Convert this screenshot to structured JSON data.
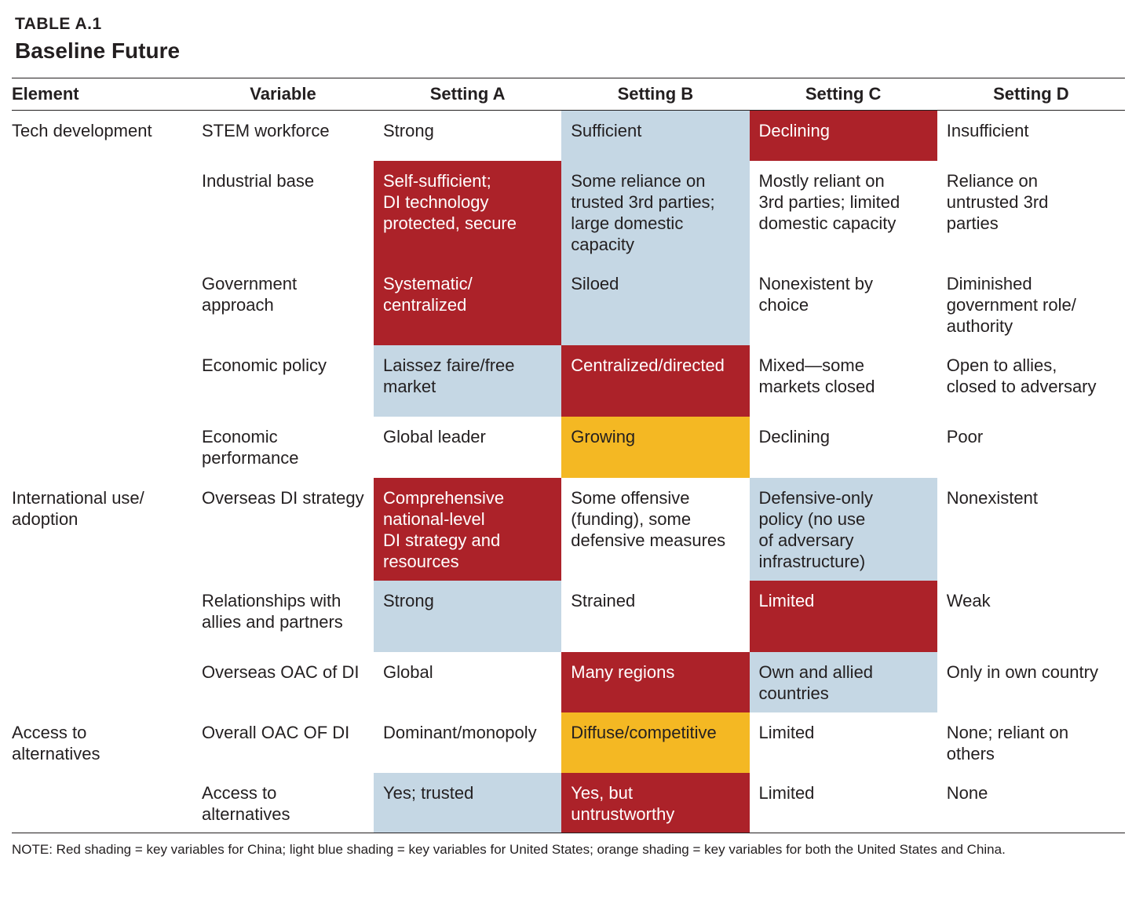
{
  "table_label": "TABLE A.1",
  "table_title": "Baseline Future",
  "columns": [
    "Element",
    "Variable",
    "Setting A",
    "Setting B",
    "Setting C",
    "Setting D"
  ],
  "colors": {
    "red": "#ac2229",
    "blue": "#c5d7e4",
    "orange": "#f4b823"
  },
  "rows": [
    {
      "element": "Tech development",
      "variable": "STEM workforce",
      "h": 64,
      "cells": [
        {
          "text": "Strong",
          "shade": ""
        },
        {
          "text": "Sufficient",
          "shade": "blue"
        },
        {
          "text": "Declining",
          "shade": "red"
        },
        {
          "text": "Insufficient",
          "shade": ""
        }
      ]
    },
    {
      "element": "",
      "variable": "Industrial base",
      "h": 131,
      "cells": [
        {
          "text": "Self-sufficient;\nDI technology\nprotected, secure",
          "shade": "red"
        },
        {
          "text": "Some reliance on\ntrusted 3rd parties;\nlarge domestic\ncapacity",
          "shade": "blue"
        },
        {
          "text": "Mostly reliant on\n3rd parties; limited\ndomestic capacity",
          "shade": ""
        },
        {
          "text": "Reliance on\nuntrusted 3rd\nparties",
          "shade": ""
        }
      ]
    },
    {
      "element": "",
      "variable": "Government\napproach",
      "h": 104,
      "cells": [
        {
          "text": "Systematic/\ncentralized",
          "shade": "red"
        },
        {
          "text": "Siloed",
          "shade": "blue"
        },
        {
          "text": "Nonexistent by\nchoice",
          "shade": ""
        },
        {
          "text": "Diminished\ngovernment role/\nauthority",
          "shade": ""
        }
      ]
    },
    {
      "element": "",
      "variable": "Economic policy",
      "h": 91,
      "cells": [
        {
          "text": "Laissez faire/free\nmarket",
          "shade": "blue"
        },
        {
          "text": "Centralized/directed",
          "shade": "red"
        },
        {
          "text": "Mixed—some\nmarkets closed",
          "shade": ""
        },
        {
          "text": "Open to allies,\nclosed to adversary",
          "shade": ""
        }
      ]
    },
    {
      "element": "",
      "variable": "Economic\nperformance",
      "h": 78,
      "cells": [
        {
          "text": "Global leader",
          "shade": ""
        },
        {
          "text": "Growing",
          "shade": "orange"
        },
        {
          "text": "Declining",
          "shade": ""
        },
        {
          "text": "Poor",
          "shade": ""
        }
      ]
    },
    {
      "element": "International use/\nadoption",
      "variable": "Overseas DI strategy",
      "h": 131,
      "cells": [
        {
          "text": "Comprehensive\nnational-level\nDI strategy and\nresources",
          "shade": "red"
        },
        {
          "text": "Some offensive\n(funding), some\ndefensive measures",
          "shade": ""
        },
        {
          "text": "Defensive-only\npolicy (no use\nof adversary\ninfrastructure)",
          "shade": "blue"
        },
        {
          "text": "Nonexistent",
          "shade": ""
        }
      ]
    },
    {
      "element": "",
      "variable": "Relationships with\nallies and partners",
      "h": 91,
      "cells": [
        {
          "text": "Strong",
          "shade": "blue"
        },
        {
          "text": "Strained",
          "shade": ""
        },
        {
          "text": "Limited",
          "shade": "red"
        },
        {
          "text": "Weak",
          "shade": ""
        }
      ]
    },
    {
      "element": "",
      "variable": "Overseas OAC of DI",
      "h": 77,
      "cells": [
        {
          "text": "Global",
          "shade": ""
        },
        {
          "text": "Many regions",
          "shade": "red"
        },
        {
          "text": "Own and allied\ncountries",
          "shade": "blue"
        },
        {
          "text": "Only in own country",
          "shade": ""
        }
      ]
    },
    {
      "element": "Access to\nalternatives",
      "variable": "Overall OAC OF DI",
      "h": 77,
      "cells": [
        {
          "text": "Dominant/monopoly",
          "shade": ""
        },
        {
          "text": "Diffuse/competitive",
          "shade": "orange"
        },
        {
          "text": "Limited",
          "shade": ""
        },
        {
          "text": "None; reliant on\nothers",
          "shade": ""
        }
      ]
    },
    {
      "element": "",
      "variable": "Access to\nalternatives",
      "h": 77,
      "cells": [
        {
          "text": "Yes; trusted",
          "shade": "blue"
        },
        {
          "text": "Yes, but\nuntrustworthy",
          "shade": "red"
        },
        {
          "text": "Limited",
          "shade": ""
        },
        {
          "text": "None",
          "shade": ""
        }
      ]
    }
  ],
  "note": "NOTE: Red shading = key variables for China; light blue shading = key variables for United States; orange shading = key variables for both the United States and China."
}
